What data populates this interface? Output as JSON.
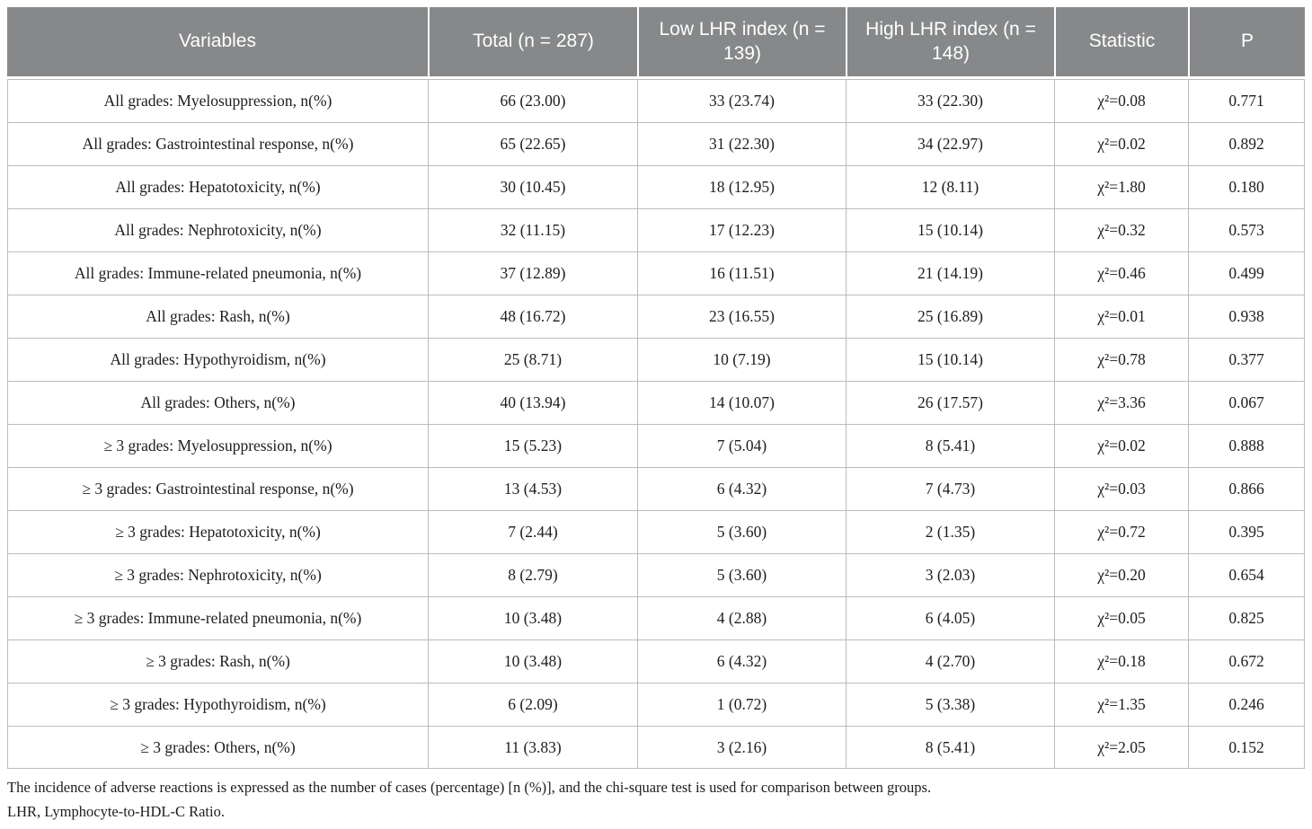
{
  "table": {
    "columns": [
      "Variables",
      "Total (n = 287)",
      "Low LHR index (n = 139)",
      "High LHR index (n = 148)",
      "Statistic",
      "P"
    ],
    "rows": [
      {
        "variable": "All grades: Myelosuppression, n(%)",
        "total": "66 (23.00)",
        "low": "33 (23.74)",
        "high": "33 (22.30)",
        "statistic": "χ²=0.08",
        "p": "0.771"
      },
      {
        "variable": "All grades: Gastrointestinal response, n(%)",
        "total": "65 (22.65)",
        "low": "31 (22.30)",
        "high": "34 (22.97)",
        "statistic": "χ²=0.02",
        "p": "0.892"
      },
      {
        "variable": "All grades: Hepatotoxicity, n(%)",
        "total": "30 (10.45)",
        "low": "18 (12.95)",
        "high": "12 (8.11)",
        "statistic": "χ²=1.80",
        "p": "0.180"
      },
      {
        "variable": "All grades: Nephrotoxicity, n(%)",
        "total": "32 (11.15)",
        "low": "17 (12.23)",
        "high": "15 (10.14)",
        "statistic": "χ²=0.32",
        "p": "0.573"
      },
      {
        "variable": "All grades: Immune-related pneumonia, n(%)",
        "total": "37 (12.89)",
        "low": "16 (11.51)",
        "high": "21 (14.19)",
        "statistic": "χ²=0.46",
        "p": "0.499"
      },
      {
        "variable": "All grades: Rash, n(%)",
        "total": "48 (16.72)",
        "low": "23 (16.55)",
        "high": "25 (16.89)",
        "statistic": "χ²=0.01",
        "p": "0.938"
      },
      {
        "variable": "All grades: Hypothyroidism, n(%)",
        "total": "25 (8.71)",
        "low": "10 (7.19)",
        "high": "15 (10.14)",
        "statistic": "χ²=0.78",
        "p": "0.377"
      },
      {
        "variable": "All grades: Others, n(%)",
        "total": "40 (13.94)",
        "low": "14 (10.07)",
        "high": "26 (17.57)",
        "statistic": "χ²=3.36",
        "p": "0.067"
      },
      {
        "variable": "≥ 3 grades: Myelosuppression, n(%)",
        "total": "15 (5.23)",
        "low": "7 (5.04)",
        "high": "8 (5.41)",
        "statistic": "χ²=0.02",
        "p": "0.888"
      },
      {
        "variable": "≥ 3 grades: Gastrointestinal response, n(%)",
        "total": "13 (4.53)",
        "low": "6 (4.32)",
        "high": "7 (4.73)",
        "statistic": "χ²=0.03",
        "p": "0.866"
      },
      {
        "variable": "≥ 3 grades: Hepatotoxicity, n(%)",
        "total": "7 (2.44)",
        "low": "5 (3.60)",
        "high": "2 (1.35)",
        "statistic": "χ²=0.72",
        "p": "0.395"
      },
      {
        "variable": "≥ 3 grades: Nephrotoxicity, n(%)",
        "total": "8 (2.79)",
        "low": "5 (3.60)",
        "high": "3 (2.03)",
        "statistic": "χ²=0.20",
        "p": "0.654"
      },
      {
        "variable": "≥ 3 grades: Immune-related pneumonia, n(%)",
        "total": "10 (3.48)",
        "low": "4 (2.88)",
        "high": "6 (4.05)",
        "statistic": "χ²=0.05",
        "p": "0.825"
      },
      {
        "variable": "≥ 3 grades: Rash, n(%)",
        "total": "10 (3.48)",
        "low": "6 (4.32)",
        "high": "4 (2.70)",
        "statistic": "χ²=0.18",
        "p": "0.672"
      },
      {
        "variable": "≥ 3 grades: Hypothyroidism, n(%)",
        "total": "6 (2.09)",
        "low": "1 (0.72)",
        "high": "5 (3.38)",
        "statistic": "χ²=1.35",
        "p": "0.246"
      },
      {
        "variable": "≥ 3 grades: Others, n(%)",
        "total": "11 (3.83)",
        "low": "3 (2.16)",
        "high": "8 (5.41)",
        "statistic": "χ²=2.05",
        "p": "0.152"
      }
    ]
  },
  "footnotes": [
    "The incidence of adverse reactions is expressed as the number of cases (percentage) [n (%)], and the chi-square test is used for comparison between groups.",
    "LHR, Lymphocyte-to-HDL-C Ratio."
  ],
  "colors": {
    "header_background": "#868889",
    "header_text": "#ffffff",
    "cell_border": "#b9bcbe",
    "body_text": "#1d1d1d"
  }
}
